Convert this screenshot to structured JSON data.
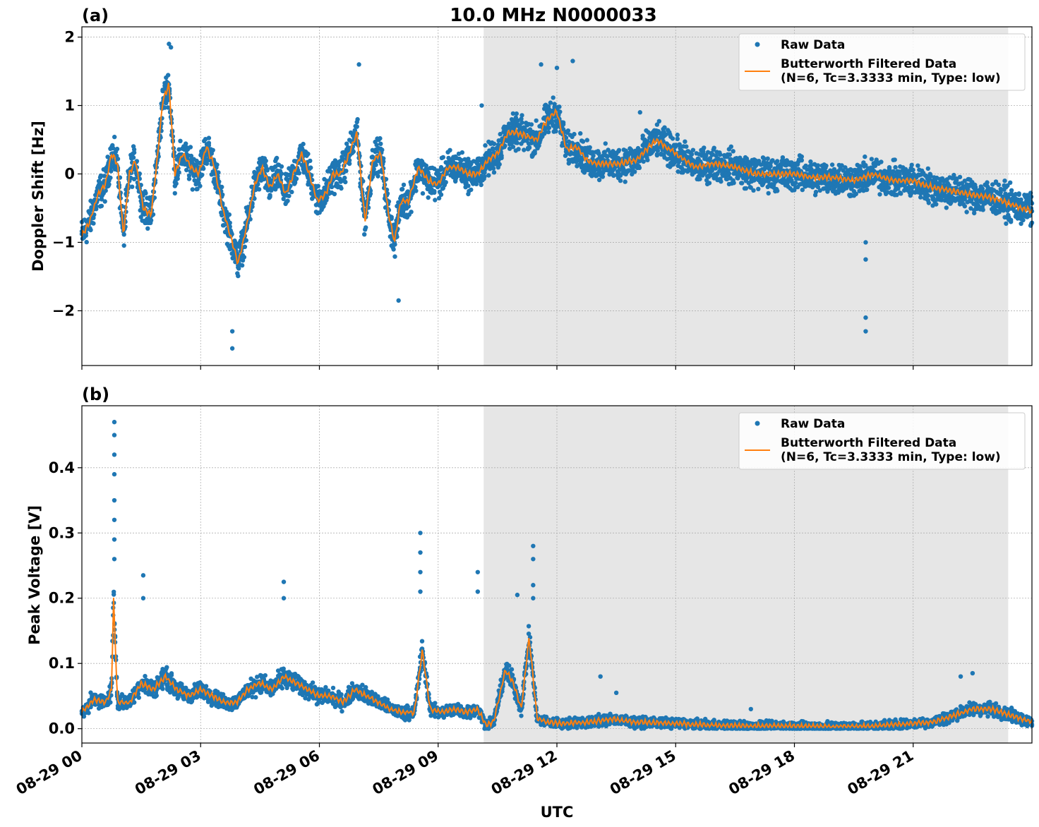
{
  "figure": {
    "title": "10.0 MHz N0000033",
    "xlabel": "UTC",
    "x_tick_labels": [
      "08-29 00",
      "08-29 03",
      "08-29 06",
      "08-29 09",
      "08-29 12",
      "08-29 15",
      "08-29 18",
      "08-29 21"
    ]
  },
  "chart_data": [
    {
      "type": "scatter",
      "panel_label": "(a)",
      "title": "10.0 MHz N0000033",
      "xlabel": "",
      "ylabel": "Doppler Shift [Hz]",
      "xlim_hours": [
        0,
        24
      ],
      "ylim": [
        -2.8,
        2.15
      ],
      "y_ticks": [
        2,
        1,
        0,
        -1,
        -2
      ],
      "y_tick_labels": [
        "2",
        "1",
        "0",
        "−1",
        "−2"
      ],
      "grid": true,
      "legend_position": "top-right",
      "shaded_region_hours": [
        10.15,
        23.4
      ],
      "colors": {
        "raw": "#1f77b4",
        "filtered": "#ff7f0e",
        "shade": "#e6e6e6"
      },
      "series": [
        {
          "name": "Raw Data",
          "kind": "points",
          "note_spread_hz": "scatter band around filtered curve",
          "x_hours": [
            0,
            0.2,
            0.4,
            0.6,
            0.75,
            0.9,
            1.05,
            1.2,
            1.35,
            1.55,
            1.75,
            1.9,
            2.05,
            2.2,
            2.35,
            2.55,
            2.75,
            2.95,
            3.15,
            3.35,
            3.55,
            3.75,
            3.95,
            4.15,
            4.35,
            4.55,
            4.75,
            4.95,
            5.15,
            5.35,
            5.55,
            5.75,
            5.95,
            6.15,
            6.35,
            6.55,
            6.75,
            6.95,
            7.15,
            7.35,
            7.55,
            7.75,
            7.9,
            8.05,
            8.25,
            8.5,
            8.75,
            9.0,
            9.25,
            9.5,
            9.75,
            10.0,
            10.25,
            10.5,
            10.75,
            11.0,
            11.25,
            11.5,
            11.75,
            12.0,
            12.25,
            12.5,
            12.75,
            13.0,
            13.5,
            14.0,
            14.5,
            15.0,
            15.5,
            16.0,
            16.5,
            17.0,
            17.5,
            18.0,
            18.5,
            19.0,
            19.5,
            20.0,
            20.5,
            21.0,
            21.5,
            22.0,
            22.5,
            23.0,
            23.5,
            24.0
          ],
          "values": [
            -0.9,
            -0.7,
            -0.3,
            -0.15,
            0.3,
            0.15,
            -0.9,
            0.0,
            0.2,
            -0.5,
            -0.6,
            0.2,
            1.1,
            1.3,
            0.0,
            0.3,
            0.1,
            0.0,
            0.4,
            0.1,
            -0.5,
            -0.9,
            -1.3,
            -0.8,
            -0.2,
            0.1,
            -0.2,
            0.0,
            -0.3,
            0.0,
            0.3,
            0.0,
            -0.4,
            -0.3,
            0.0,
            0.0,
            0.3,
            0.6,
            -0.7,
            0.2,
            0.3,
            -0.6,
            -1.0,
            -0.4,
            -0.4,
            0.1,
            -0.1,
            -0.15,
            0.1,
            0.1,
            0.0,
            0.0,
            0.2,
            0.3,
            0.6,
            0.6,
            0.55,
            0.5,
            0.8,
            0.9,
            0.35,
            0.4,
            0.2,
            0.15,
            0.15,
            0.2,
            0.5,
            0.3,
            0.1,
            0.15,
            0.1,
            0.0,
            0.0,
            0.0,
            -0.05,
            -0.05,
            -0.1,
            0.0,
            -0.1,
            -0.1,
            -0.2,
            -0.25,
            -0.3,
            -0.35,
            -0.45,
            -0.55
          ],
          "spread": 0.35
        },
        {
          "name": "Butterworth Filtered Data\n(N=6, Tc=3.3333 min, Type: low)",
          "kind": "line",
          "x_hours": [
            0,
            0.2,
            0.4,
            0.6,
            0.75,
            0.9,
            1.05,
            1.2,
            1.35,
            1.55,
            1.75,
            1.9,
            2.05,
            2.2,
            2.35,
            2.55,
            2.75,
            2.95,
            3.15,
            3.35,
            3.55,
            3.75,
            3.95,
            4.15,
            4.35,
            4.55,
            4.75,
            4.95,
            5.15,
            5.35,
            5.55,
            5.75,
            5.95,
            6.15,
            6.35,
            6.55,
            6.75,
            6.95,
            7.15,
            7.35,
            7.55,
            7.75,
            7.9,
            8.05,
            8.25,
            8.5,
            8.75,
            9.0,
            9.25,
            9.5,
            9.75,
            10.0,
            10.25,
            10.5,
            10.75,
            11.0,
            11.25,
            11.5,
            11.75,
            12.0,
            12.25,
            12.5,
            12.75,
            13.0,
            13.5,
            14.0,
            14.5,
            15.0,
            15.5,
            16.0,
            16.5,
            17.0,
            17.5,
            18.0,
            18.5,
            19.0,
            19.5,
            20.0,
            20.5,
            21.0,
            21.5,
            22.0,
            22.5,
            23.0,
            23.5,
            24.0
          ],
          "values": [
            -0.9,
            -0.7,
            -0.3,
            -0.15,
            0.3,
            0.15,
            -0.9,
            0.0,
            0.2,
            -0.5,
            -0.6,
            0.2,
            1.1,
            1.3,
            0.0,
            0.3,
            0.1,
            0.0,
            0.4,
            0.1,
            -0.5,
            -0.9,
            -1.3,
            -0.8,
            -0.2,
            0.1,
            -0.2,
            0.0,
            -0.3,
            0.0,
            0.3,
            0.0,
            -0.4,
            -0.3,
            0.0,
            0.0,
            0.3,
            0.6,
            -0.7,
            0.2,
            0.3,
            -0.6,
            -1.0,
            -0.4,
            -0.4,
            0.1,
            -0.1,
            -0.15,
            0.1,
            0.1,
            0.0,
            0.0,
            0.2,
            0.3,
            0.6,
            0.6,
            0.55,
            0.5,
            0.8,
            0.9,
            0.35,
            0.4,
            0.2,
            0.15,
            0.15,
            0.2,
            0.5,
            0.3,
            0.1,
            0.15,
            0.1,
            0.0,
            0.0,
            0.0,
            -0.05,
            -0.05,
            -0.1,
            0.0,
            -0.1,
            -0.1,
            -0.2,
            -0.25,
            -0.3,
            -0.35,
            -0.45,
            -0.55
          ]
        }
      ],
      "outliers": [
        {
          "x": 2.2,
          "y": 1.9
        },
        {
          "x": 2.25,
          "y": 1.85
        },
        {
          "x": 3.8,
          "y": -2.55
        },
        {
          "x": 3.8,
          "y": -2.3
        },
        {
          "x": 7.0,
          "y": 1.6
        },
        {
          "x": 8.0,
          "y": -1.85
        },
        {
          "x": 11.6,
          "y": 1.6
        },
        {
          "x": 12.0,
          "y": 1.55
        },
        {
          "x": 12.4,
          "y": 1.65
        },
        {
          "x": 14.1,
          "y": 0.9
        },
        {
          "x": 19.8,
          "y": -2.3
        },
        {
          "x": 19.8,
          "y": -2.1
        },
        {
          "x": 19.8,
          "y": -1.25
        },
        {
          "x": 19.8,
          "y": -1.0
        },
        {
          "x": 10.1,
          "y": 1.0
        }
      ]
    },
    {
      "type": "scatter",
      "panel_label": "(b)",
      "title": "",
      "xlabel": "UTC",
      "ylabel": "Peak Voltage [V]",
      "xlim_hours": [
        0,
        24
      ],
      "ylim": [
        -0.022,
        0.495
      ],
      "y_ticks": [
        0.0,
        0.1,
        0.2,
        0.3,
        0.4
      ],
      "y_tick_labels": [
        "0.0",
        "0.1",
        "0.2",
        "0.3",
        "0.4"
      ],
      "grid": true,
      "legend_position": "top-right",
      "shaded_region_hours": [
        10.15,
        23.4
      ],
      "colors": {
        "raw": "#1f77b4",
        "filtered": "#ff7f0e",
        "shade": "#e6e6e6"
      },
      "series": [
        {
          "name": "Raw Data",
          "kind": "points",
          "x_hours": [
            0,
            0.3,
            0.6,
            0.75,
            0.8,
            0.9,
            1.2,
            1.5,
            1.8,
            2.1,
            2.4,
            2.7,
            3.0,
            3.3,
            3.6,
            3.9,
            4.2,
            4.5,
            4.8,
            5.1,
            5.4,
            5.7,
            6.0,
            6.3,
            6.6,
            6.9,
            7.2,
            7.5,
            7.8,
            8.1,
            8.4,
            8.6,
            8.8,
            9.1,
            9.4,
            9.7,
            10.0,
            10.2,
            10.4,
            10.7,
            10.9,
            11.1,
            11.3,
            11.5,
            11.8,
            12.2,
            12.8,
            13.4,
            14.0,
            15.0,
            16.0,
            17.0,
            18.0,
            19.0,
            20.0,
            21.0,
            21.5,
            22.0,
            22.5,
            23.0,
            23.5,
            24.0
          ],
          "values": [
            0.025,
            0.045,
            0.04,
            0.06,
            0.2,
            0.04,
            0.04,
            0.07,
            0.06,
            0.08,
            0.06,
            0.05,
            0.06,
            0.05,
            0.04,
            0.04,
            0.06,
            0.07,
            0.06,
            0.08,
            0.07,
            0.06,
            0.05,
            0.05,
            0.04,
            0.06,
            0.05,
            0.04,
            0.03,
            0.025,
            0.025,
            0.12,
            0.03,
            0.025,
            0.03,
            0.025,
            0.03,
            0.006,
            0.01,
            0.09,
            0.07,
            0.03,
            0.14,
            0.015,
            0.01,
            0.008,
            0.01,
            0.015,
            0.01,
            0.008,
            0.005,
            0.004,
            0.004,
            0.003,
            0.004,
            0.008,
            0.01,
            0.02,
            0.03,
            0.03,
            0.02,
            0.01
          ],
          "spread": 0.025
        },
        {
          "name": "Butterworth Filtered Data\n(N=6, Tc=3.3333 min, Type: low)",
          "kind": "line",
          "x_hours": [
            0,
            0.3,
            0.6,
            0.75,
            0.8,
            0.9,
            1.2,
            1.5,
            1.8,
            2.1,
            2.4,
            2.7,
            3.0,
            3.3,
            3.6,
            3.9,
            4.2,
            4.5,
            4.8,
            5.1,
            5.4,
            5.7,
            6.0,
            6.3,
            6.6,
            6.9,
            7.2,
            7.5,
            7.8,
            8.1,
            8.4,
            8.6,
            8.8,
            9.1,
            9.4,
            9.7,
            10.0,
            10.2,
            10.4,
            10.7,
            10.9,
            11.1,
            11.3,
            11.5,
            11.8,
            12.2,
            12.8,
            13.4,
            14.0,
            15.0,
            16.0,
            17.0,
            18.0,
            19.0,
            20.0,
            21.0,
            21.5,
            22.0,
            22.5,
            23.0,
            23.5,
            24.0
          ],
          "values": [
            0.025,
            0.045,
            0.04,
            0.06,
            0.2,
            0.04,
            0.04,
            0.07,
            0.06,
            0.08,
            0.06,
            0.05,
            0.06,
            0.05,
            0.04,
            0.04,
            0.06,
            0.07,
            0.06,
            0.08,
            0.07,
            0.06,
            0.05,
            0.05,
            0.04,
            0.06,
            0.05,
            0.04,
            0.03,
            0.025,
            0.025,
            0.12,
            0.03,
            0.025,
            0.03,
            0.025,
            0.03,
            0.006,
            0.01,
            0.09,
            0.07,
            0.03,
            0.14,
            0.015,
            0.01,
            0.008,
            0.01,
            0.015,
            0.01,
            0.008,
            0.005,
            0.004,
            0.004,
            0.003,
            0.004,
            0.008,
            0.01,
            0.02,
            0.03,
            0.03,
            0.02,
            0.01
          ]
        }
      ],
      "outliers": [
        {
          "x": 0.82,
          "y": 0.47
        },
        {
          "x": 0.82,
          "y": 0.45
        },
        {
          "x": 0.82,
          "y": 0.42
        },
        {
          "x": 0.82,
          "y": 0.39
        },
        {
          "x": 0.82,
          "y": 0.35
        },
        {
          "x": 0.82,
          "y": 0.32
        },
        {
          "x": 0.82,
          "y": 0.29
        },
        {
          "x": 0.82,
          "y": 0.26
        },
        {
          "x": 8.55,
          "y": 0.3
        },
        {
          "x": 8.55,
          "y": 0.27
        },
        {
          "x": 8.55,
          "y": 0.24
        },
        {
          "x": 8.55,
          "y": 0.21
        },
        {
          "x": 11.4,
          "y": 0.28
        },
        {
          "x": 11.4,
          "y": 0.26
        },
        {
          "x": 11.4,
          "y": 0.22
        },
        {
          "x": 11.4,
          "y": 0.2
        },
        {
          "x": 10.0,
          "y": 0.24
        },
        {
          "x": 10.0,
          "y": 0.21
        },
        {
          "x": 1.55,
          "y": 0.235
        },
        {
          "x": 1.55,
          "y": 0.2
        },
        {
          "x": 5.1,
          "y": 0.225
        },
        {
          "x": 5.1,
          "y": 0.2
        },
        {
          "x": 11.0,
          "y": 0.205
        },
        {
          "x": 13.1,
          "y": 0.08
        },
        {
          "x": 13.5,
          "y": 0.055
        },
        {
          "x": 16.9,
          "y": 0.03
        },
        {
          "x": 22.5,
          "y": 0.085
        },
        {
          "x": 22.2,
          "y": 0.08
        }
      ]
    }
  ]
}
